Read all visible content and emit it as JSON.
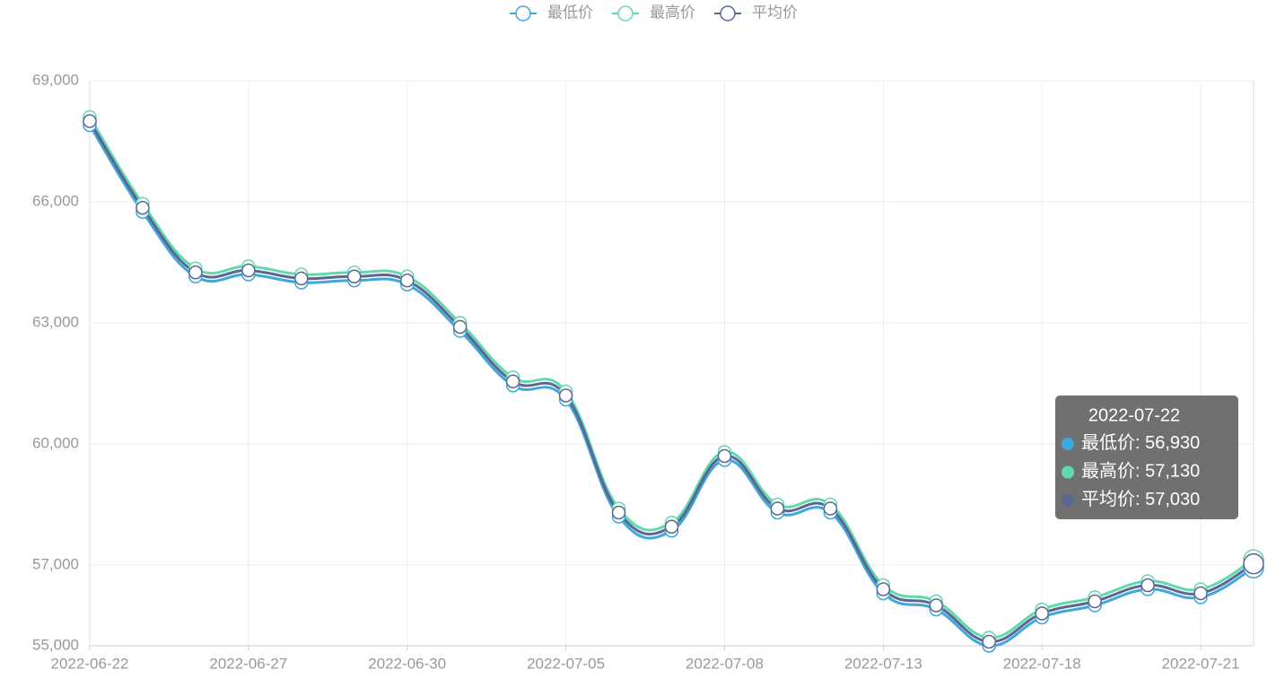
{
  "chart_data": {
    "type": "line",
    "categories": [
      "2022-06-22",
      null,
      null,
      "2022-06-27",
      null,
      null,
      "2022-06-30",
      null,
      null,
      "2022-07-05",
      null,
      null,
      "2022-07-08",
      null,
      null,
      "2022-07-13",
      null,
      null,
      "2022-07-18",
      null,
      null,
      "2022-07-21",
      "2022-07-22"
    ],
    "series": [
      {
        "name": "最低价",
        "color": "#3fa7dc",
        "values": [
          67900,
          65750,
          64150,
          64200,
          64000,
          64050,
          63950,
          62800,
          61450,
          61100,
          58200,
          57850,
          59600,
          58300,
          58300,
          56300,
          55900,
          55000,
          55700,
          56000,
          56400,
          56200,
          56930
        ],
        "value_labels": [
          null,
          null,
          null,
          null,
          null,
          null,
          null,
          null,
          null,
          null,
          null,
          null,
          null,
          null,
          null,
          null,
          null,
          null,
          null,
          null,
          null,
          null,
          "56,930"
        ]
      },
      {
        "name": "最高价",
        "color": "#62d9ad",
        "values": [
          68100,
          65950,
          64350,
          64400,
          64200,
          64250,
          64150,
          63000,
          61650,
          61300,
          58400,
          58050,
          59800,
          58500,
          58500,
          56500,
          56100,
          55200,
          55900,
          56200,
          56600,
          56400,
          57130
        ],
        "value_labels": [
          null,
          null,
          null,
          null,
          null,
          null,
          null,
          null,
          null,
          null,
          null,
          null,
          null,
          null,
          null,
          null,
          null,
          null,
          null,
          null,
          null,
          null,
          "57,130"
        ]
      },
      {
        "name": "平均价",
        "color": "#5a6791",
        "values": [
          68000,
          65850,
          64250,
          64300,
          64100,
          64150,
          64050,
          62900,
          61550,
          61200,
          58300,
          57950,
          59700,
          58400,
          58400,
          56400,
          56000,
          55100,
          55800,
          56100,
          56500,
          56300,
          57030
        ],
        "value_labels": [
          null,
          null,
          null,
          null,
          null,
          null,
          null,
          null,
          null,
          null,
          null,
          null,
          null,
          null,
          null,
          null,
          null,
          null,
          null,
          null,
          null,
          null,
          "57,030"
        ]
      }
    ],
    "ylim": [
      55000,
      69000
    ],
    "yticks": [
      {
        "value": 55000,
        "label": "55,000"
      },
      {
        "value": 57000,
        "label": "57,000"
      },
      {
        "value": 60000,
        "label": "60,000"
      },
      {
        "value": 63000,
        "label": "63,000"
      },
      {
        "value": 66000,
        "label": "66,000"
      },
      {
        "value": 69000,
        "label": "69,000"
      }
    ],
    "grid": true,
    "smooth": true
  }
}
